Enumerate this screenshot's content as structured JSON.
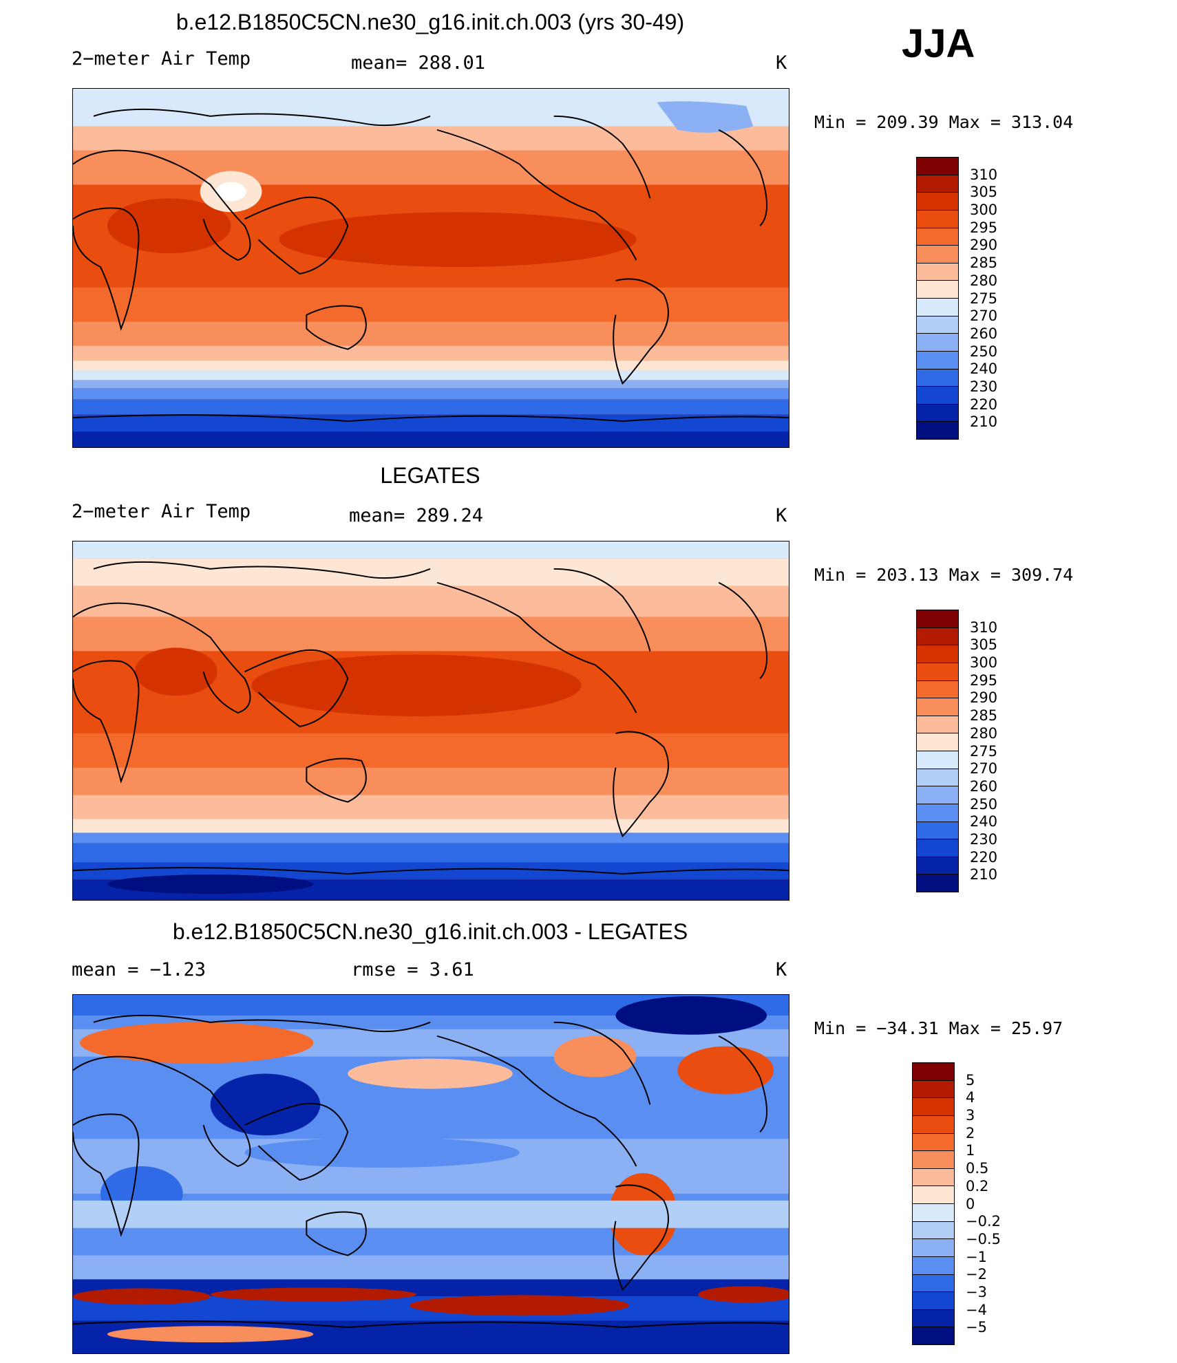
{
  "season": "JJA",
  "panels": [
    {
      "title": "b.e12.B1850C5CN.ne30_g16.init.ch.003 (yrs 30-49)",
      "left_label": "2−meter Air Temp",
      "center_label": "mean=  288.01",
      "units": "K",
      "minmax": "Min  =  209.39  Max  =  313.04",
      "colorbar_labels": [
        "310",
        "305",
        "300",
        "295",
        "290",
        "285",
        "280",
        "275",
        "270",
        "260",
        "250",
        "240",
        "230",
        "220",
        "210"
      ],
      "colors": [
        "#7f0000",
        "#b31b00",
        "#d43300",
        "#ea4d10",
        "#f36a2c",
        "#f88e5c",
        "#fcbc9c",
        "#fde6d3",
        "#d7e9fa",
        "#b2cff7",
        "#8bb1f4",
        "#5a8ef0",
        "#2f6be6",
        "#1347d2",
        "#0523a8",
        "#000f80"
      ]
    },
    {
      "title": "LEGATES",
      "left_label": "2−meter Air Temp",
      "center_label": "mean=  289.24",
      "units": "K",
      "minmax": "Min  =  203.13  Max  =  309.74",
      "colorbar_labels": [
        "310",
        "305",
        "300",
        "295",
        "290",
        "285",
        "280",
        "275",
        "270",
        "260",
        "250",
        "240",
        "230",
        "220",
        "210"
      ],
      "colors": [
        "#7f0000",
        "#b31b00",
        "#d43300",
        "#ea4d10",
        "#f36a2c",
        "#f88e5c",
        "#fcbc9c",
        "#fde6d3",
        "#d7e9fa",
        "#b2cff7",
        "#8bb1f4",
        "#5a8ef0",
        "#2f6be6",
        "#1347d2",
        "#0523a8",
        "#000f80"
      ]
    },
    {
      "title": "b.e12.B1850C5CN.ne30_g16.init.ch.003 - LEGATES",
      "left_label": "mean =    −1.23",
      "center_label": "rmse =     3.61",
      "units": "K",
      "minmax": "Min  =  −34.31  Max  =    25.97",
      "colorbar_labels": [
        "5",
        "4",
        "3",
        "2",
        "1",
        "0.5",
        "0.2",
        "0",
        "−0.2",
        "−0.5",
        "−1",
        "−2",
        "−3",
        "−4",
        "−5"
      ],
      "colors": [
        "#7f0000",
        "#b31b00",
        "#d43300",
        "#ea4d10",
        "#f36a2c",
        "#f88e5c",
        "#fcbc9c",
        "#fde6d3",
        "#d7e9fa",
        "#b2cff7",
        "#8bb1f4",
        "#5a8ef0",
        "#2f6be6",
        "#1347d2",
        "#0523a8",
        "#000f80"
      ]
    }
  ]
}
